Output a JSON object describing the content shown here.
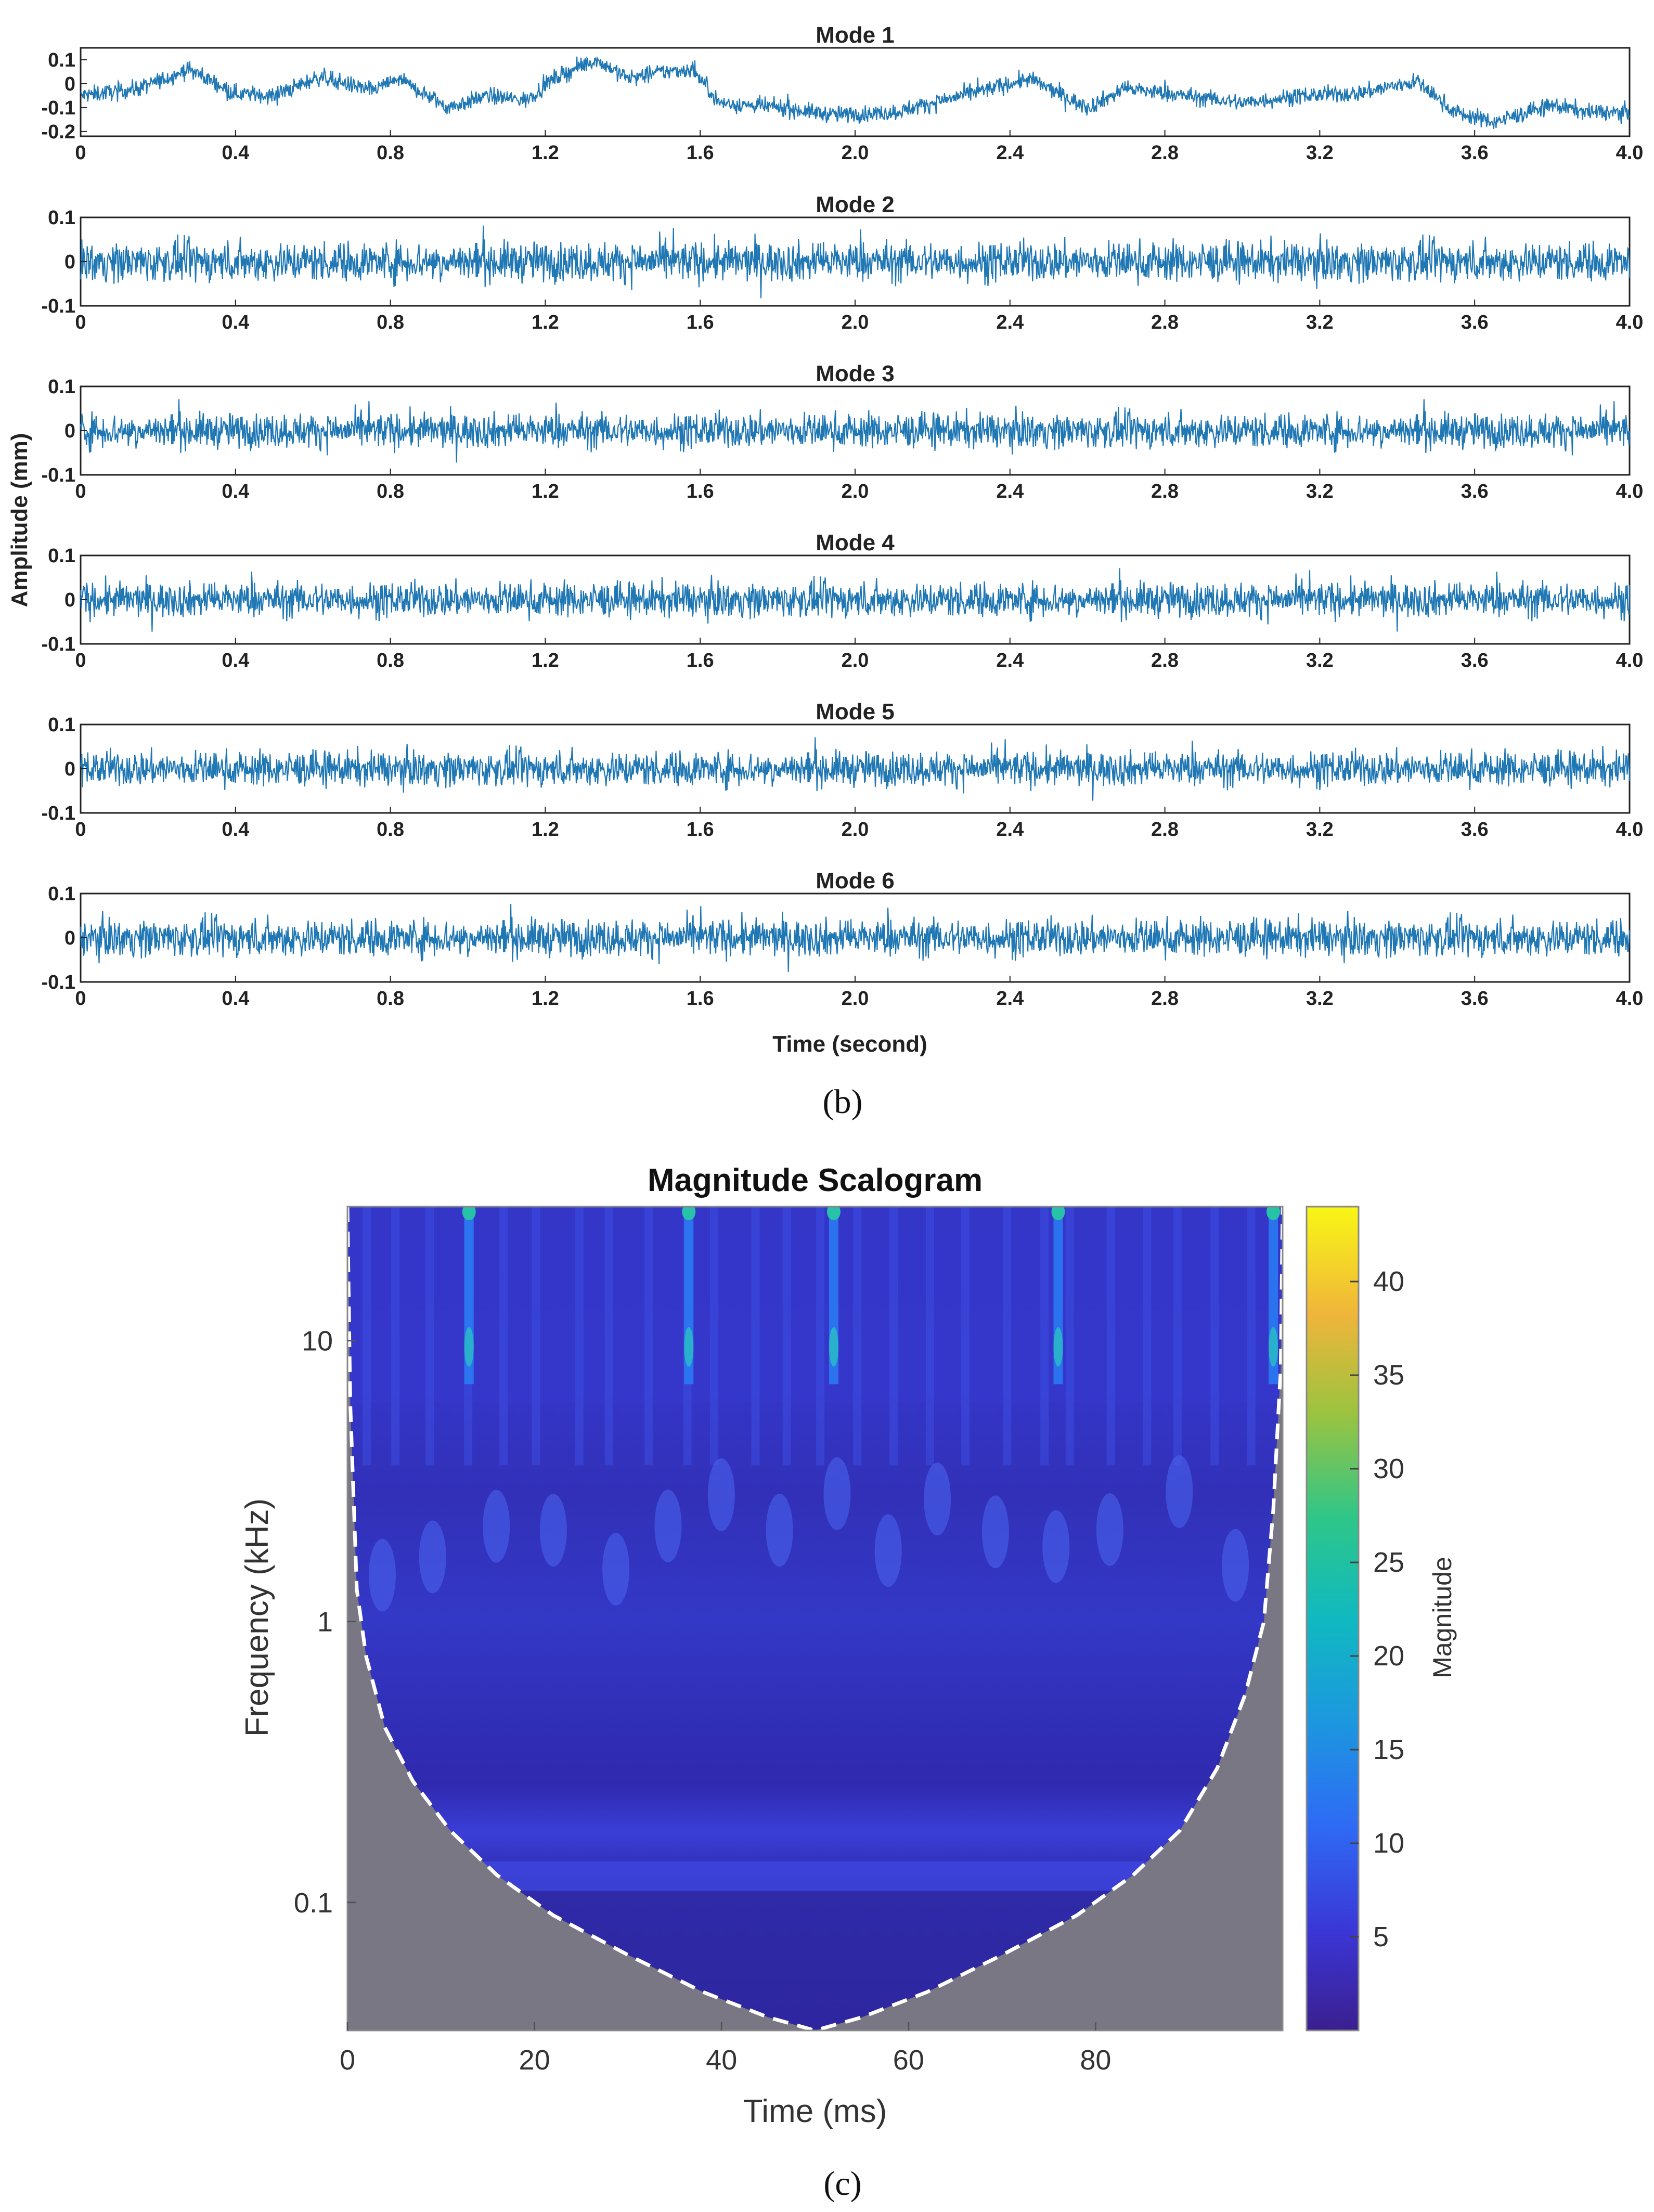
{
  "panel_b_label": "(b)",
  "panel_c_label": "(c)",
  "colors": {
    "signal": "#1f77b4",
    "axis": "#222222",
    "coi_fill": "#7a7785",
    "coi_line": "#ffffff"
  },
  "chart_data": [
    {
      "type": "line",
      "figure": "b",
      "shared_ylabel": "Amplitude (mm)",
      "xlabel": "Time (second)",
      "xlim": [
        0,
        4.0
      ],
      "xticks": [
        "0",
        "0.4",
        "0.8",
        "1.2",
        "1.6",
        "2.0",
        "2.4",
        "2.8",
        "3.2",
        "3.6",
        "4.0"
      ],
      "modes": [
        {
          "title": "Mode 1",
          "ylim": [
            -0.22,
            0.15
          ],
          "yticks": [
            "0.1",
            "0",
            "-0.1",
            "-0.2"
          ],
          "ytick_values": [
            0.1,
            0,
            -0.1,
            -0.2
          ],
          "noise": 0.025,
          "trend_x": [
            0,
            0.15,
            0.28,
            0.4,
            0.5,
            0.62,
            0.75,
            0.82,
            0.95,
            1.05,
            1.15,
            1.22,
            1.33,
            1.42,
            1.5,
            1.58,
            1.65,
            1.8,
            1.95,
            2.1,
            2.25,
            2.45,
            2.6,
            2.7,
            2.85,
            3.0,
            3.15,
            3.3,
            3.45,
            3.55,
            3.65,
            3.8,
            3.9,
            4.0
          ],
          "trend_y": [
            -0.05,
            -0.02,
            0.06,
            -0.04,
            -0.05,
            0.03,
            -0.03,
            0.02,
            -0.1,
            -0.05,
            -0.07,
            0.02,
            0.1,
            0.02,
            0.05,
            0.06,
            -0.08,
            -0.1,
            -0.13,
            -0.12,
            -0.06,
            0.02,
            -0.1,
            -0.02,
            -0.05,
            -0.08,
            -0.05,
            -0.04,
            0.01,
            -0.12,
            -0.16,
            -0.09,
            -0.12,
            -0.12
          ]
        },
        {
          "title": "Mode 2",
          "ylim": [
            -0.1,
            0.1
          ],
          "yticks": [
            "0.1",
            "0",
            "-0.1"
          ],
          "ytick_values": [
            0.1,
            0,
            -0.1
          ],
          "noise": 0.032,
          "trend_x": [
            0,
            4.0
          ],
          "trend_y": [
            0,
            0
          ]
        },
        {
          "title": "Mode 3",
          "ylim": [
            -0.1,
            0.1
          ],
          "yticks": [
            "0.1",
            "0",
            "-0.1"
          ],
          "ytick_values": [
            0.1,
            0,
            -0.1
          ],
          "noise": 0.028,
          "trend_x": [
            0,
            4.0
          ],
          "trend_y": [
            0,
            0
          ]
        },
        {
          "title": "Mode 4",
          "ylim": [
            -0.1,
            0.1
          ],
          "yticks": [
            "0.1",
            "0",
            "-0.1"
          ],
          "ytick_values": [
            0.1,
            0,
            -0.1
          ],
          "noise": 0.028,
          "trend_x": [
            0,
            4.0
          ],
          "trend_y": [
            0,
            0
          ]
        },
        {
          "title": "Mode 5",
          "ylim": [
            -0.1,
            0.1
          ],
          "yticks": [
            "0.1",
            "0",
            "-0.1"
          ],
          "ytick_values": [
            0.1,
            0,
            -0.1
          ],
          "noise": 0.028,
          "trend_x": [
            0,
            4.0
          ],
          "trend_y": [
            0,
            0
          ]
        },
        {
          "title": "Mode 6",
          "ylim": [
            -0.1,
            0.1
          ],
          "yticks": [
            "0.1",
            "0",
            "-0.1"
          ],
          "ytick_values": [
            0.1,
            0,
            -0.1
          ],
          "noise": 0.03,
          "trend_x": [
            0,
            4.0
          ],
          "trend_y": [
            0,
            0
          ]
        }
      ]
    },
    {
      "type": "heatmap",
      "figure": "c",
      "title": "Magnitude Scalogram",
      "xlabel": "Time (ms)",
      "ylabel": "Frequency (kHz)",
      "xlim": [
        0,
        100
      ],
      "xticks": [
        0,
        20,
        40,
        60,
        80
      ],
      "xtick_labels": [
        "0",
        "20",
        "40",
        "60",
        "80"
      ],
      "ylim_log": [
        0.035,
        30
      ],
      "yticks": [
        10,
        1,
        0.1
      ],
      "ytick_labels": [
        "10",
        "1",
        "0.1"
      ],
      "colorbar": {
        "label": "Magnitude",
        "range": [
          0,
          44
        ],
        "ticks": [
          5,
          10,
          15,
          20,
          25,
          30,
          35,
          40
        ],
        "tick_labels": [
          "5",
          "10",
          "15",
          "20",
          "25",
          "30",
          "35",
          "40"
        ]
      },
      "hotspots_ms": [
        13,
        36.5,
        52,
        76,
        99
      ]
    }
  ]
}
